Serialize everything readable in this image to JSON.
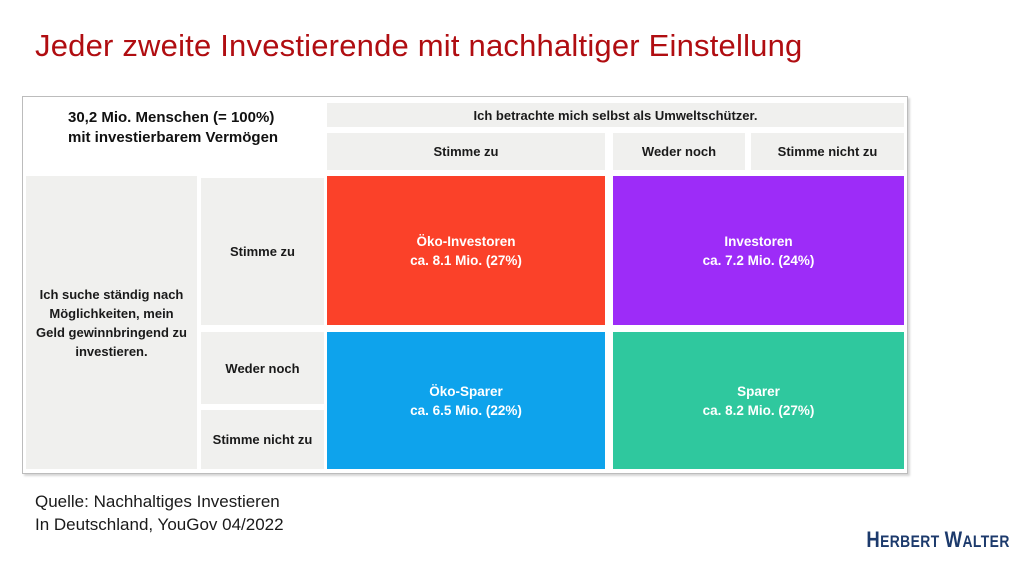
{
  "title": "Jeder zweite Investierende mit nachhaltiger Einstellung",
  "matrix": {
    "population_line1": "30,2 Mio. Menschen (= 100%)",
    "population_line2": "mit investierbarem Vermögen",
    "column_question": "Ich betrachte mich selbst als Umweltschützer.",
    "row_question": "Ich suche ständig nach Möglichkeiten, mein Geld gewinnbringend zu investieren.",
    "column_headers": {
      "0": "Stimme zu",
      "1": "Weder noch",
      "2": "Stimme nicht zu"
    },
    "row_headers": {
      "0": "Stimme zu",
      "1": "Weder noch",
      "2": "Stimme nicht zu"
    },
    "segments": {
      "0": {
        "name": "Öko-Investoren",
        "value": "ca. 8.1 Mio. (27%)",
        "color": "#fb4129"
      },
      "1": {
        "name": "Investoren",
        "value": "ca. 7.2 Mio. (24%)",
        "color": "#9d2cf8"
      },
      "2": {
        "name": "Öko-Sparer",
        "value": "ca. 6.5 Mio. (22%)",
        "color": "#0ea3ec"
      },
      "3": {
        "name": "Sparer",
        "value": "ca. 8.2 Mio. (27%)",
        "color": "#2fc89e"
      }
    }
  },
  "source": {
    "line1": "Quelle: Nachhaltiges Investieren",
    "line2": "In Deutschland, YouGov 04/2022"
  },
  "logo": {
    "part1_big": "H",
    "part1_small": "ERBERT",
    "part2_big": "W",
    "part2_small": "ALTER",
    "color": "#1c3a6c"
  },
  "chart_data": {
    "type": "table",
    "title": "Jeder zweite Investierende mit nachhaltiger Einstellung",
    "total_population": "30,2 Mio. Menschen (= 100%) mit investierbarem Vermögen",
    "x_question": "Ich betrachte mich selbst als Umweltschützer.",
    "y_question": "Ich suche ständig nach Möglichkeiten, mein Geld gewinnbringend zu investieren.",
    "x_categories": [
      "Stimme zu",
      "Weder noch",
      "Stimme nicht zu"
    ],
    "y_categories": [
      "Stimme zu",
      "Weder noch",
      "Stimme nicht zu"
    ],
    "segments": [
      {
        "label": "Öko-Investoren",
        "millions": 8.1,
        "percent": 27,
        "x": "Stimme zu",
        "y": "Stimme zu",
        "color": "#fb4129"
      },
      {
        "label": "Investoren",
        "millions": 7.2,
        "percent": 24,
        "x": "Weder noch + Stimme nicht zu",
        "y": "Stimme zu",
        "color": "#9d2cf8"
      },
      {
        "label": "Öko-Sparer",
        "millions": 6.5,
        "percent": 22,
        "x": "Stimme zu",
        "y": "Weder noch + Stimme nicht zu",
        "color": "#0ea3ec"
      },
      {
        "label": "Sparer",
        "millions": 8.2,
        "percent": 27,
        "x": "Weder noch + Stimme nicht zu",
        "y": "Weder noch + Stimme nicht zu",
        "color": "#2fc89e"
      }
    ],
    "source": "Quelle: Nachhaltiges Investieren In Deutschland, YouGov 04/2022"
  }
}
